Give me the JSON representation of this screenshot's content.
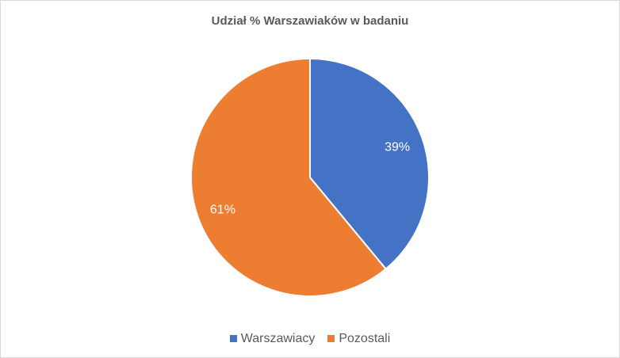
{
  "chart_data": {
    "type": "pie",
    "title": "Udział %  Warszawiaków w badaniu",
    "categories": [
      "Warszawiacy",
      "Pozostali"
    ],
    "values": [
      39,
      61
    ],
    "labels": [
      "39%",
      "61%"
    ],
    "colors": [
      "#4472C4",
      "#ED7D31"
    ],
    "legend_position": "bottom"
  }
}
